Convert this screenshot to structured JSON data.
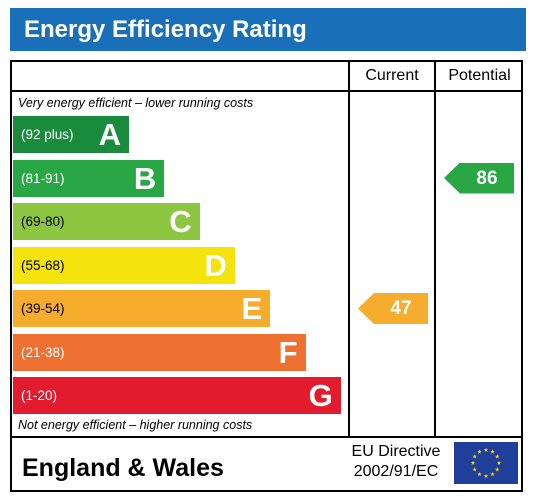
{
  "header": {
    "title": "Energy Efficiency Rating"
  },
  "columns": {
    "current": "Current",
    "potential": "Potential"
  },
  "notes": {
    "top": "Very energy efficient – lower running costs",
    "bottom": "Not energy efficient – higher running costs"
  },
  "footer": {
    "country": "England & Wales",
    "directive_line1": "EU Directive",
    "directive_line2": "2002/91/EC",
    "flag_icon": "eu-flag-icon"
  },
  "chart_data": {
    "type": "bar",
    "title": "Energy Efficiency Rating",
    "bands": [
      {
        "letter": "A",
        "range": "(92 plus)",
        "color": "#1a8a3c"
      },
      {
        "letter": "B",
        "range": "(81-91)",
        "color": "#2aa745"
      },
      {
        "letter": "C",
        "range": "(69-80)",
        "color": "#8dc640"
      },
      {
        "letter": "D",
        "range": "(55-68)",
        "color": "#f4e30c"
      },
      {
        "letter": "E",
        "range": "(39-54)",
        "color": "#f6ac2d"
      },
      {
        "letter": "F",
        "range": "(21-38)",
        "color": "#ef7131"
      },
      {
        "letter": "G",
        "range": "(1-20)",
        "color": "#e21b2d"
      }
    ],
    "current": {
      "value": "47",
      "band": "E",
      "color": "#f6ac2d"
    },
    "potential": {
      "value": "86",
      "band": "B",
      "color": "#2aa745"
    }
  }
}
